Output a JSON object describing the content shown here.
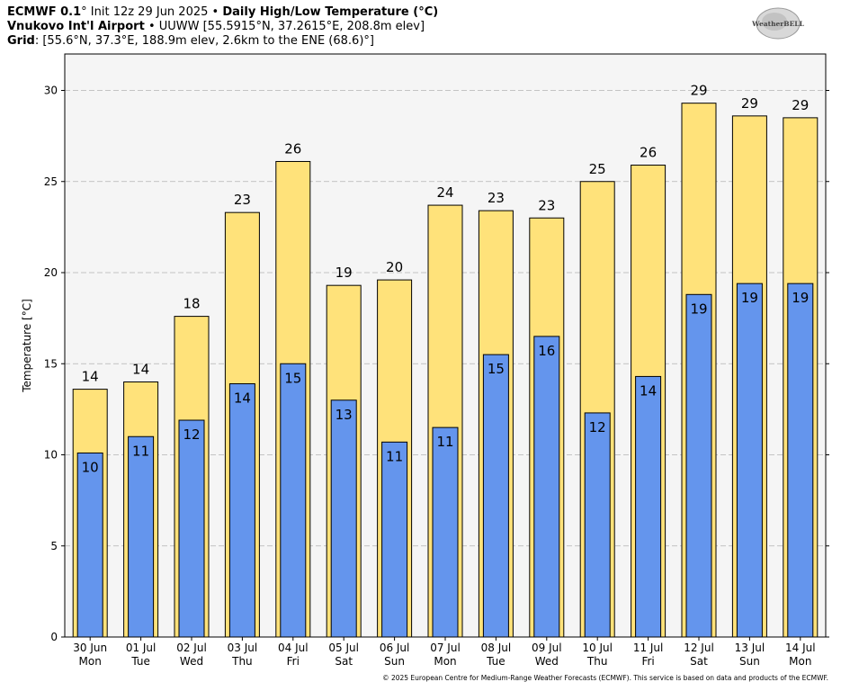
{
  "header": {
    "line1_model": "ECMWF 0.1",
    "line1_mid": "° Init 12z 29 Jun 2025 •",
    "line1_title": "Daily High/Low Temperature (°C)",
    "line2_station": "Vnukovo Int'l Airport",
    "line2_rest": "• UUWW [55.5915°N, 37.2615°E, 208.8m elev]",
    "line3_grid": "Grid",
    "line3_rest": ": [55.6°N, 37.3°E, 188.9m elev, 2.6km to the ENE (68.6)°]"
  },
  "logo": {
    "text": "WeatherBELL",
    "icon": "weatherbell-logo"
  },
  "footer": "© 2025 European Centre for Medium-Range Weather Forecasts (ECMWF). This service is based on data and products of the ECMWF.",
  "chart_data": {
    "type": "bar",
    "ylabel": "Temperature [°C]",
    "ylim": [
      0,
      32
    ],
    "yticks": [
      0,
      5,
      10,
      15,
      20,
      25,
      30
    ],
    "grid": true,
    "categories": [
      {
        "date": "30 Jun",
        "day": "Mon"
      },
      {
        "date": "01 Jul",
        "day": "Tue"
      },
      {
        "date": "02 Jul",
        "day": "Wed"
      },
      {
        "date": "03 Jul",
        "day": "Thu"
      },
      {
        "date": "04 Jul",
        "day": "Fri"
      },
      {
        "date": "05 Jul",
        "day": "Sat"
      },
      {
        "date": "06 Jul",
        "day": "Sun"
      },
      {
        "date": "07 Jul",
        "day": "Mon"
      },
      {
        "date": "08 Jul",
        "day": "Tue"
      },
      {
        "date": "09 Jul",
        "day": "Wed"
      },
      {
        "date": "10 Jul",
        "day": "Thu"
      },
      {
        "date": "11 Jul",
        "day": "Fri"
      },
      {
        "date": "12 Jul",
        "day": "Sat"
      },
      {
        "date": "13 Jul",
        "day": "Sun"
      },
      {
        "date": "14 Jul",
        "day": "Mon"
      }
    ],
    "series": [
      {
        "color": "#ffe27a",
        "values": [
          13.6,
          14.0,
          17.6,
          23.3,
          26.1,
          19.3,
          19.6,
          23.7,
          23.4,
          23.0,
          25.0,
          25.9,
          29.3,
          28.6,
          28.5
        ],
        "labels": [
          "14",
          "14",
          "18",
          "23",
          "26",
          "19",
          "20",
          "24",
          "23",
          "23",
          "25",
          "26",
          "29",
          "29",
          "29"
        ]
      },
      {
        "color": "#6495ed",
        "values": [
          10.1,
          11.0,
          11.9,
          13.9,
          15.0,
          13.0,
          10.7,
          11.5,
          15.5,
          16.5,
          12.3,
          14.3,
          18.8,
          19.4,
          19.4
        ],
        "labels": [
          "10",
          "11",
          "12",
          "14",
          "15",
          "13",
          "11",
          "11",
          "15",
          "16",
          "12",
          "14",
          "19",
          "19",
          "19"
        ]
      }
    ]
  }
}
